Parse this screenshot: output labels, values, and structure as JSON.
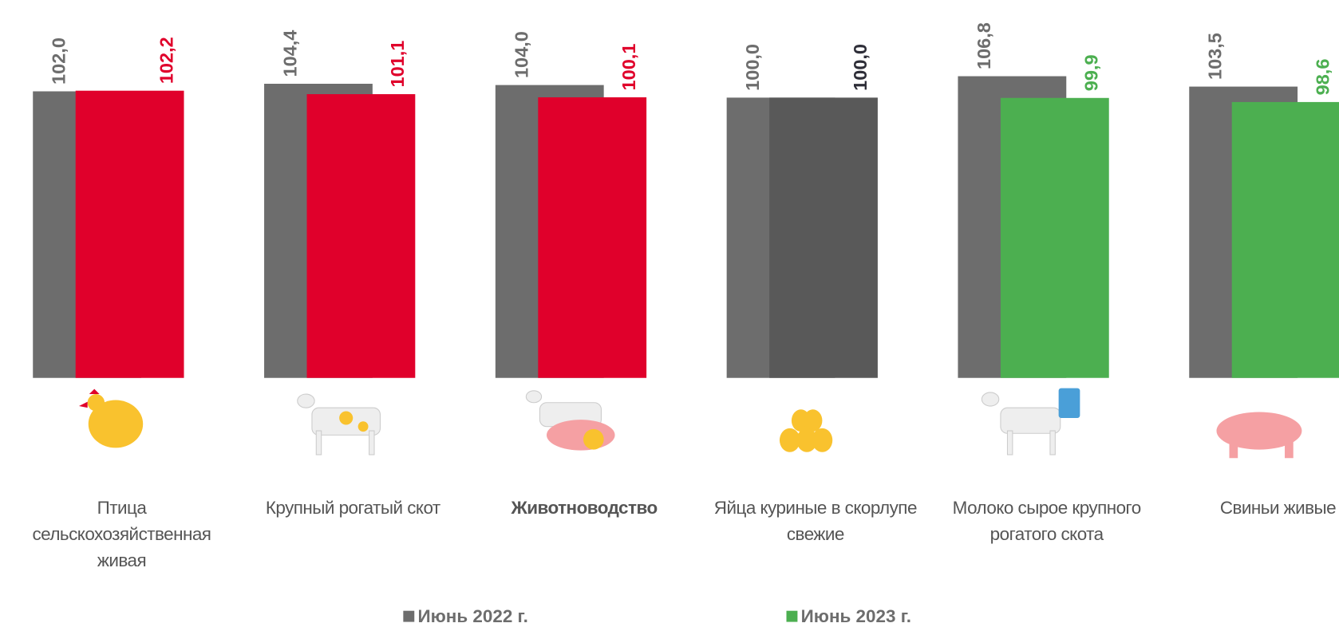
{
  "chart_data": {
    "type": "bar",
    "categories": [
      "Птица сельскохозяйственная живая",
      "Крупный рогатый скот",
      "Животноводство",
      "Яйца куриные в скорлупе свежие",
      "Молоко сырое крупного рогатого скота",
      "Свиньи живые"
    ],
    "category_bold": [
      false,
      false,
      true,
      false,
      false,
      false
    ],
    "series": [
      {
        "name": "Июнь 2022 г.",
        "color": "#6d6d6d",
        "colors": [
          "#6d6d6d",
          "#6d6d6d",
          "#6d6d6d",
          "#6d6d6d",
          "#6d6d6d",
          "#6d6d6d"
        ],
        "values": [
          102.0,
          104.4,
          104.0,
          100.0,
          106.8,
          103.5
        ],
        "value_labels": [
          "102,0",
          "104,4",
          "104,0",
          "100,0",
          "106,8",
          "103,5"
        ]
      },
      {
        "name": "Июнь 2023 г.",
        "color": "#4caf50",
        "colors": [
          "#e0002b",
          "#e0002b",
          "#e0002b",
          "#595959",
          "#4caf50",
          "#4caf50"
        ],
        "label_colors": [
          "#e0002b",
          "#e0002b",
          "#e0002b",
          "#2e2e38",
          "#4caf50",
          "#4caf50"
        ],
        "values": [
          102.2,
          101.1,
          100.1,
          100.0,
          99.9,
          98.6
        ],
        "value_labels": [
          "102,2",
          "101,1",
          "100,1",
          "100,0",
          "99,9",
          "98,6"
        ]
      }
    ],
    "ylim": [
      11,
      131
    ]
  }
}
